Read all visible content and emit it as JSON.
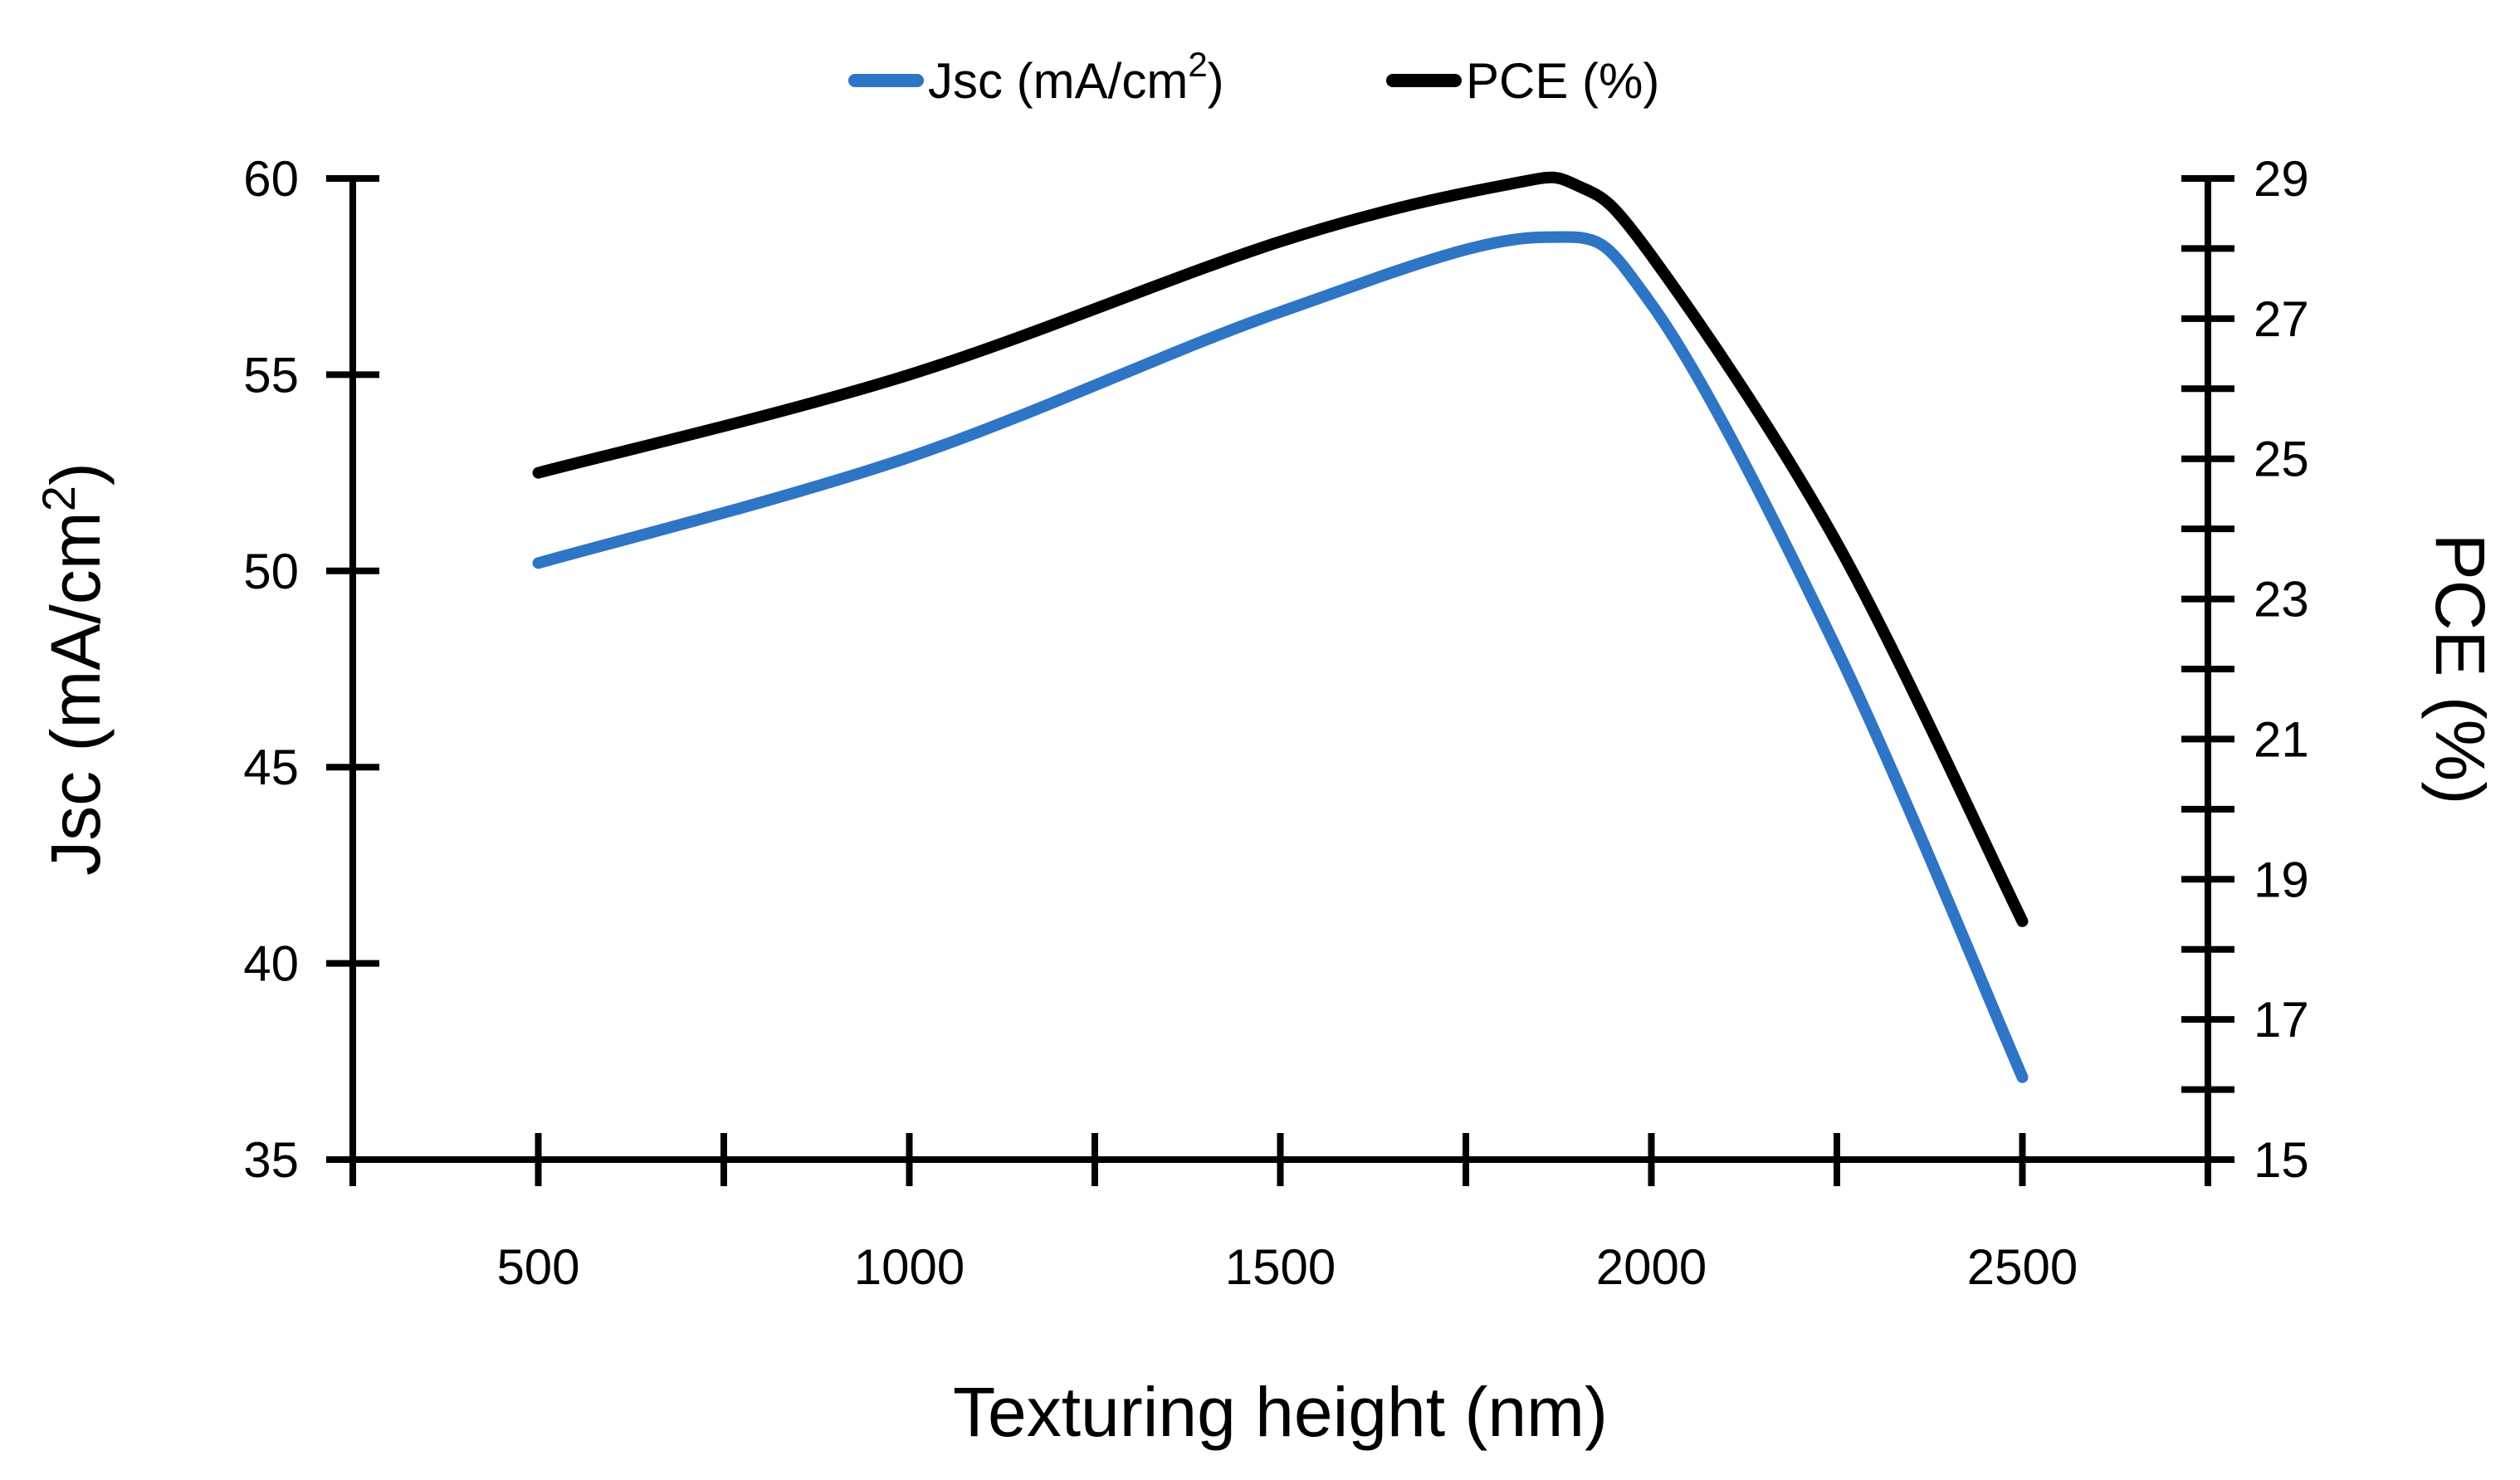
{
  "chart_data": {
    "type": "line",
    "title": "",
    "xlabel": "Texturing height (nm)",
    "ylabel": {
      "base": "Jsc (mA/cm",
      "sup": "2",
      "end": ")"
    },
    "y2label": "PCE (%)",
    "xlim": [
      250,
      2750
    ],
    "ylim": [
      35,
      60
    ],
    "y2lim": [
      15,
      29
    ],
    "x_ticks": [
      500,
      1000,
      1500,
      2000,
      2500
    ],
    "x_minor_ticks": [
      250,
      750,
      1250,
      1750,
      2250,
      2750
    ],
    "y_ticks": [
      35,
      40,
      45,
      50,
      55,
      60
    ],
    "y2_ticks": [
      15,
      17,
      19,
      21,
      23,
      25,
      27,
      29
    ],
    "y2_minor_ticks": [
      16,
      18,
      20,
      22,
      24,
      26,
      28
    ],
    "grid": false,
    "legend": {
      "position": "top-center",
      "entries": [
        {
          "base": "Jsc (mA/cm",
          "sup": "2",
          "end": ")",
          "color": "#2e75c6"
        },
        {
          "base": "PCE (%)",
          "sup": "",
          "end": "",
          "color": "#000000"
        }
      ]
    },
    "series": [
      {
        "name": "Jsc (mA/cm2)",
        "axis": "left",
        "color": "#2e75c6",
        "x": [
          500,
          1000,
          1500,
          1850,
          2000,
          2250,
          2500
        ],
        "values": [
          50.2,
          52.9,
          56.6,
          58.5,
          56.8,
          48.0,
          37.1
        ]
      },
      {
        "name": "PCE (%)",
        "axis": "right",
        "color": "#000000",
        "x": [
          500,
          1000,
          1500,
          1800,
          1900,
          2000,
          2250,
          2500
        ],
        "values": [
          24.8,
          26.2,
          28.1,
          28.9,
          28.9,
          27.9,
          23.8,
          18.4
        ]
      }
    ]
  }
}
